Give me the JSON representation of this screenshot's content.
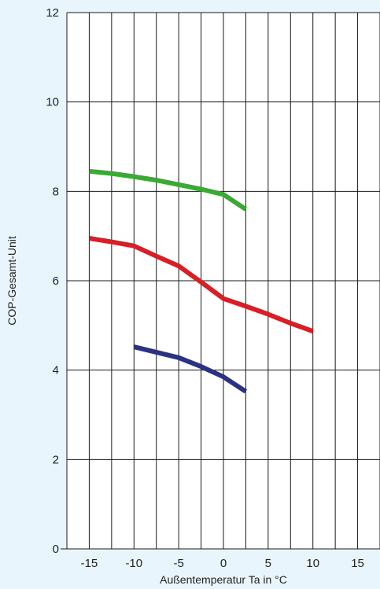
{
  "chart_data": {
    "type": "line",
    "title": "",
    "xlabel": "Außentemperatur Ta in °C",
    "ylabel": "COP-Gesamt-Unit",
    "xlim": [
      -17.5,
      17.5
    ],
    "ylim": [
      0,
      12
    ],
    "x_ticks": [
      -15,
      -10,
      -5,
      0,
      5,
      10,
      15
    ],
    "x_tick_labels": [
      "-15",
      "-10",
      "-5",
      "0",
      "5",
      "10",
      "15"
    ],
    "y_ticks": [
      0,
      2,
      4,
      6,
      8,
      10,
      12
    ],
    "y_tick_labels": [
      "0",
      "2",
      "4",
      "6",
      "8",
      "10",
      "12"
    ],
    "x_grid_lines": [
      -17.5,
      -15,
      -12.5,
      -10,
      -7.5,
      -5,
      -2.5,
      0,
      2.5,
      5,
      7.5,
      10,
      12.5,
      15,
      17.5
    ],
    "grid": true,
    "legend": "none",
    "series": [
      {
        "color": "#3aaa35",
        "x": [
          -15,
          -12.5,
          -10,
          -7.5,
          -5,
          -2.5,
          0,
          2.5
        ],
        "y": [
          8.45,
          8.4,
          8.33,
          8.25,
          8.15,
          8.05,
          7.93,
          7.6
        ]
      },
      {
        "color": "#d61f26",
        "x": [
          -15,
          -12.5,
          -10,
          -7.5,
          -5,
          -2.5,
          0,
          2.5,
          5,
          7.5,
          10
        ],
        "y": [
          6.95,
          6.87,
          6.78,
          6.55,
          6.33,
          5.97,
          5.6,
          5.43,
          5.25,
          5.05,
          4.87
        ]
      },
      {
        "color": "#2a3282",
        "x": [
          -10,
          -7.5,
          -5,
          -2.5,
          0,
          2.5
        ],
        "y": [
          4.52,
          4.4,
          4.28,
          4.08,
          3.85,
          3.52
        ]
      }
    ]
  }
}
